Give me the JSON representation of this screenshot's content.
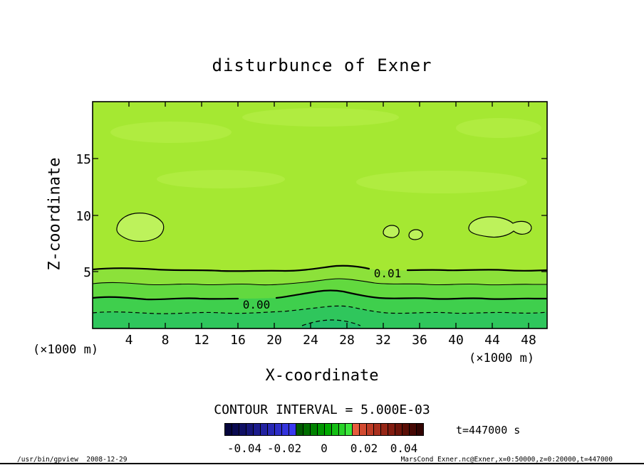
{
  "title": "disturbunce of Exner",
  "plot": {
    "contour_label_high": "0.01",
    "contour_label_zero": "0.00"
  },
  "axes": {
    "x_label": "X-coordinate",
    "y_label": "Z-coordinate",
    "x_unit_left": "(×1000 m)",
    "x_unit_right": "(×1000 m)",
    "x_ticks": [
      "4",
      "8",
      "12",
      "16",
      "20",
      "24",
      "28",
      "32",
      "36",
      "40",
      "44",
      "48"
    ],
    "y_ticks": [
      "15",
      "10",
      "5"
    ]
  },
  "legend": {
    "contour_interval": "CONTOUR INTERVAL = 5.000E-03",
    "time": "t=447000 s"
  },
  "colorbar": {
    "tick_labels": [
      "-0.04",
      "-0.02",
      "0",
      "0.02",
      "0.04"
    ],
    "colors": [
      "#05053c",
      "#0a0a50",
      "#101064",
      "#161678",
      "#1c1c8c",
      "#2222a0",
      "#2828b4",
      "#2e2ec8",
      "#3434dc",
      "#3a3af0",
      "#005a00",
      "#006e00",
      "#008200",
      "#009600",
      "#00aa00",
      "#14be14",
      "#28d228",
      "#3ce63c",
      "#e65c3c",
      "#d24a30",
      "#be3c26",
      "#aa301e",
      "#962616",
      "#821c10",
      "#6e140a",
      "#5a0e06",
      "#460804",
      "#320402"
    ]
  },
  "footer": {
    "left": "/usr/bin/gpview  2008-12-29",
    "right": "MarsCond_Exner.nc@Exner,x=0:50000,z=0:20000,t=447000"
  },
  "chart_data": {
    "type": "heatmap",
    "title": "disturbunce of Exner",
    "xlabel": "X-coordinate (×1000 m)",
    "ylabel": "Z-coordinate (×1000 m)",
    "x_range_km": [
      0,
      50
    ],
    "z_range_km": [
      0,
      20
    ],
    "x_tick_values": [
      4,
      8,
      12,
      16,
      20,
      24,
      28,
      32,
      36,
      40,
      44,
      48
    ],
    "z_tick_values": [
      5,
      10,
      15
    ],
    "contour_interval": 0.005,
    "time_s": 447000,
    "colorbar_range": [
      -0.05,
      0.05
    ],
    "contours": [
      {
        "level": -0.01,
        "style": "dashed",
        "extent": "partial arc near surface around x=22-28 km, z≈0.3 km"
      },
      {
        "level": -0.005,
        "style": "dashed",
        "mean_z_km": 1.4
      },
      {
        "level": 0.0,
        "style": "solid-thick",
        "mean_z_km": 2.6,
        "label": "0.00",
        "label_x_km": 18
      },
      {
        "level": 0.005,
        "style": "solid-thin",
        "mean_z_km": 3.9
      },
      {
        "level": 0.01,
        "style": "solid-thick",
        "mean_z_km": 5.1,
        "label": "0.01",
        "label_x_km": 32.5
      }
    ],
    "closed_contour_islands_0015": [
      {
        "x_km": 4.7,
        "z_km": 8.9,
        "width_km": 5.0
      },
      {
        "x_km": 32.8,
        "z_km": 8.5,
        "width_km": 1.7
      },
      {
        "x_km": 35.5,
        "z_km": 8.2,
        "width_km": 1.4
      },
      {
        "x_km": 45.0,
        "z_km": 8.8,
        "width_km": 7.0
      }
    ],
    "mean_vertical_profile": {
      "z_km": [
        0,
        1,
        2,
        3,
        4,
        5,
        7,
        9,
        12,
        15,
        18,
        20
      ],
      "value": [
        -0.007,
        -0.004,
        -0.001,
        0.002,
        0.0055,
        0.0095,
        0.013,
        0.0148,
        0.014,
        0.0138,
        0.0135,
        0.013
      ]
    },
    "fill_levels": [
      {
        "range": "> 0.010",
        "color": "#a5e832"
      },
      {
        "range": "0.005 to 0.010",
        "color": "#8ce13a"
      },
      {
        "range": "0.000 to 0.005",
        "color": "#62d93f"
      },
      {
        "range": "-0.005 to 0.000",
        "color": "#3fcf4d"
      },
      {
        "range": "-0.010 to -0.005",
        "color": "#2fc65c"
      },
      {
        "range": "< -0.010",
        "color": "#23bd68"
      },
      {
        "range": "> 0.015 islands",
        "color": "#bdf25b"
      },
      {
        "range": "light patches",
        "color": "#b0ec40"
      }
    ]
  }
}
